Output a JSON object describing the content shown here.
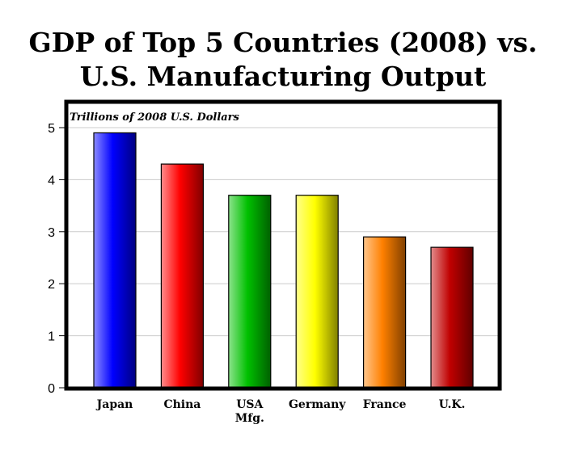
{
  "chart_data": {
    "type": "bar",
    "title_lines": [
      "GDP of Top 5 Countries (2008) vs.",
      "U.S. Manufacturing Output"
    ],
    "ylabel": "Trillions of 2008 U.S. Dollars",
    "xlabel": "",
    "categories": [
      "Japan",
      "China",
      "USA Mfg.",
      "Germany",
      "France",
      "U.K."
    ],
    "category_lines": [
      [
        "Japan"
      ],
      [
        "China"
      ],
      [
        "USA",
        "Mfg."
      ],
      [
        "Germany"
      ],
      [
        "France"
      ],
      [
        "U.K."
      ]
    ],
    "values": [
      4.9,
      4.3,
      3.7,
      3.7,
      2.9,
      2.7
    ],
    "colors": [
      "#0000ff",
      "#ff0000",
      "#00c000",
      "#ffff00",
      "#ff8000",
      "#c00000"
    ],
    "ylim": [
      0,
      5.5
    ],
    "yticks": [
      0,
      1,
      2,
      3,
      4,
      5
    ],
    "grid": true,
    "legend": "none"
  }
}
